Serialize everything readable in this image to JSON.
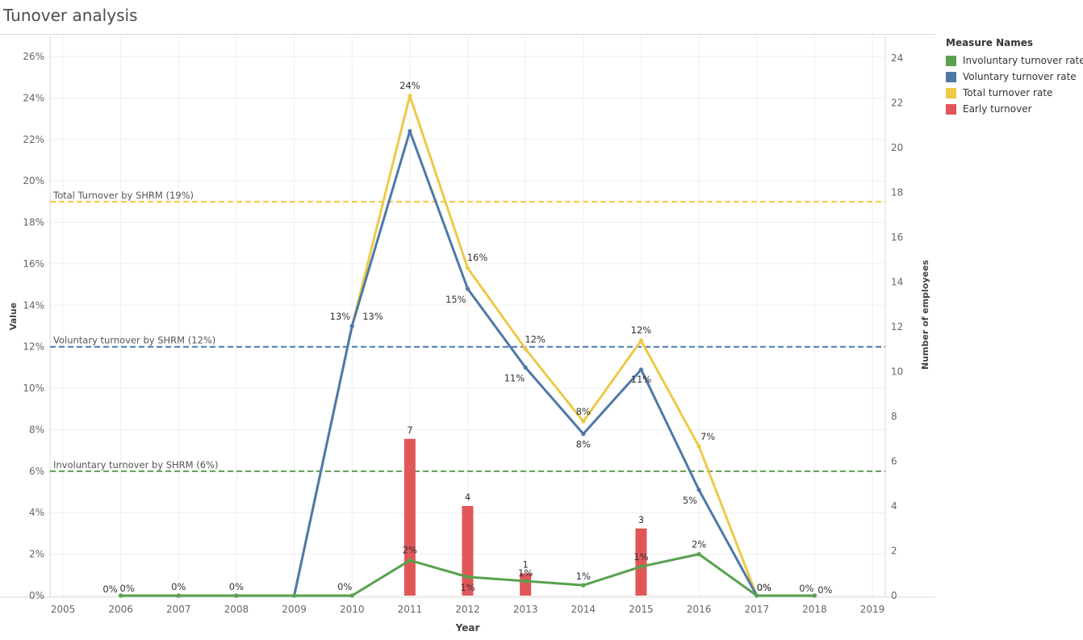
{
  "page": {
    "title": "Tunover analysis"
  },
  "legend": {
    "title": "Measure Names",
    "items": [
      {
        "label": "Involuntary turnover rate",
        "color": "#59a14f"
      },
      {
        "label": "Voluntary turnover rate",
        "color": "#4e79a7"
      },
      {
        "label": "Total turnover rate",
        "color": "#edc948"
      },
      {
        "label": "Early turnover",
        "color": "#e15759"
      }
    ]
  },
  "chart_data": {
    "type": "line",
    "title": "Tunover analysis",
    "xlabel": "Year",
    "ylabel": "Value",
    "y2label": "Number of employees",
    "xlim": [
      2005,
      2019
    ],
    "ylim": [
      0,
      26
    ],
    "y2lim": [
      0,
      24
    ],
    "x_ticks": [
      "2005",
      "2006",
      "2007",
      "2008",
      "2009",
      "2010",
      "2011",
      "2012",
      "2013",
      "2014",
      "2015",
      "2016",
      "2017",
      "2018",
      "2019"
    ],
    "y_ticks": [
      "0%",
      "2%",
      "4%",
      "6%",
      "8%",
      "10%",
      "12%",
      "14%",
      "16%",
      "18%",
      "20%",
      "22%",
      "24%",
      "26%"
    ],
    "y2_ticks": [
      "0",
      "2",
      "4",
      "6",
      "8",
      "10",
      "12",
      "14",
      "16",
      "18",
      "20",
      "22",
      "24"
    ],
    "grid": true,
    "legend_position": "right",
    "reference_lines": [
      {
        "label": "Total Turnover by SHRM (19%)",
        "value": 19,
        "color": "#edc948"
      },
      {
        "label": "Voluntary turnover by SHRM (12%)",
        "value": 12,
        "color": "#4e79a7"
      },
      {
        "label": "Involuntary turnover by SHRM (6%)",
        "value": 6,
        "color": "#59a14f"
      }
    ],
    "series": [
      {
        "name": "Total turnover rate",
        "type": "line",
        "axis": "left",
        "color": "#edc948",
        "x": [
          2006,
          2007,
          2008,
          2009,
          2010,
          2011,
          2012,
          2013,
          2014,
          2015,
          2016,
          2017,
          2018
        ],
        "values": [
          0,
          0,
          0,
          0,
          13,
          24.1,
          15.8,
          11.9,
          8.4,
          12.3,
          7.2,
          0,
          0
        ],
        "labels": [
          "",
          "",
          "",
          "",
          "13%",
          "24%",
          "16%",
          "12%",
          "8%",
          "12%",
          "7%",
          "",
          ""
        ]
      },
      {
        "name": "Voluntary turnover rate",
        "type": "line",
        "axis": "left",
        "color": "#4e79a7",
        "x": [
          2006,
          2007,
          2008,
          2009,
          2010,
          2011,
          2012,
          2013,
          2014,
          2015,
          2016,
          2017,
          2018
        ],
        "values": [
          0,
          0,
          0,
          0,
          13,
          22.4,
          14.8,
          11,
          7.8,
          10.9,
          5.1,
          0,
          0
        ],
        "labels": [
          "",
          "",
          "",
          "",
          "13%",
          "",
          "15%",
          "11%",
          "8%",
          "11%",
          "5%",
          "0%",
          ""
        ]
      },
      {
        "name": "Involuntary turnover rate",
        "type": "line",
        "axis": "left",
        "color": "#59a14f",
        "x": [
          2006,
          2007,
          2008,
          2009,
          2010,
          2011,
          2012,
          2013,
          2014,
          2015,
          2016,
          2017,
          2018
        ],
        "values": [
          0,
          0,
          0,
          0,
          0,
          1.7,
          0.9,
          0.7,
          0.5,
          1.4,
          2,
          0,
          0
        ],
        "labels": [
          "0%",
          "0%",
          "0%",
          "",
          "0%",
          "2%",
          "1%",
          "1%",
          "1%",
          "1%",
          "2%",
          "0%",
          "0%"
        ]
      },
      {
        "name": "Early turnover",
        "type": "bar",
        "axis": "right",
        "color": "#e15759",
        "x": [
          2011,
          2012,
          2013,
          2015
        ],
        "values": [
          7,
          4,
          1,
          3
        ],
        "labels": [
          "7",
          "4",
          "1",
          "3"
        ]
      }
    ],
    "extra_labels": [
      {
        "x": 2006,
        "text": "0%"
      },
      {
        "x": 2018,
        "text": "0%"
      }
    ]
  }
}
